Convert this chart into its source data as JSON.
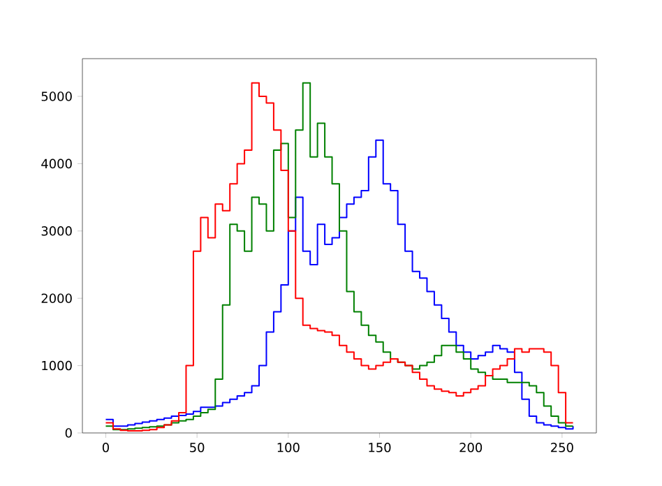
{
  "chart_data": {
    "type": "step",
    "x": [
      0,
      4,
      8,
      12,
      16,
      20,
      24,
      28,
      32,
      36,
      40,
      44,
      48,
      52,
      56,
      60,
      64,
      68,
      72,
      76,
      80,
      84,
      88,
      92,
      96,
      100,
      104,
      108,
      112,
      116,
      120,
      124,
      128,
      132,
      136,
      140,
      144,
      148,
      152,
      156,
      160,
      164,
      168,
      172,
      176,
      180,
      184,
      188,
      192,
      196,
      200,
      204,
      208,
      212,
      216,
      220,
      224,
      228,
      232,
      236,
      240,
      244,
      248,
      252,
      256
    ],
    "series": [
      {
        "color": "#0000ff",
        "values": [
          200,
          100,
          100,
          120,
          140,
          160,
          180,
          200,
          220,
          250,
          260,
          280,
          320,
          380,
          380,
          400,
          450,
          500,
          550,
          600,
          700,
          1000,
          1500,
          1800,
          2200,
          3000,
          3500,
          2700,
          2500,
          3100,
          2800,
          2900,
          3200,
          3400,
          3500,
          3600,
          4100,
          4350,
          3700,
          3600,
          3100,
          2700,
          2400,
          2300,
          2100,
          1900,
          1700,
          1500,
          1300,
          1200,
          1100,
          1150,
          1200,
          1300,
          1250,
          1200,
          900,
          500,
          250,
          150,
          120,
          100,
          80,
          60,
          100
        ]
      },
      {
        "color": "#008000",
        "values": [
          100,
          50,
          50,
          60,
          70,
          80,
          90,
          100,
          120,
          150,
          180,
          200,
          250,
          300,
          350,
          800,
          1900,
          3100,
          3000,
          2700,
          3500,
          3400,
          3000,
          4200,
          4300,
          3200,
          4500,
          5200,
          4100,
          4600,
          4100,
          3700,
          3000,
          2100,
          1800,
          1600,
          1450,
          1350,
          1200,
          1100,
          1050,
          1000,
          950,
          1000,
          1050,
          1150,
          1300,
          1300,
          1200,
          1100,
          950,
          900,
          850,
          800,
          800,
          750,
          750,
          750,
          700,
          600,
          400,
          250,
          150,
          100,
          100
        ]
      },
      {
        "color": "#ff0000",
        "values": [
          150,
          60,
          40,
          30,
          30,
          40,
          50,
          80,
          120,
          180,
          300,
          1000,
          2700,
          3200,
          2900,
          3400,
          3300,
          3700,
          4000,
          4200,
          5200,
          5000,
          4900,
          4500,
          3900,
          3000,
          2000,
          1600,
          1550,
          1520,
          1500,
          1450,
          1300,
          1200,
          1100,
          1000,
          950,
          1000,
          1050,
          1100,
          1050,
          1000,
          900,
          800,
          700,
          650,
          620,
          600,
          550,
          600,
          650,
          700,
          850,
          950,
          1000,
          1100,
          1250,
          1200,
          1250,
          1250,
          1200,
          1000,
          600,
          150,
          150
        ]
      }
    ],
    "xlim": [
      -12.8,
      268.8
    ],
    "ylim": [
      0,
      5560
    ],
    "xticks": [
      0,
      50,
      100,
      150,
      200,
      250
    ],
    "yticks": [
      0,
      1000,
      2000,
      3000,
      4000,
      5000
    ]
  }
}
